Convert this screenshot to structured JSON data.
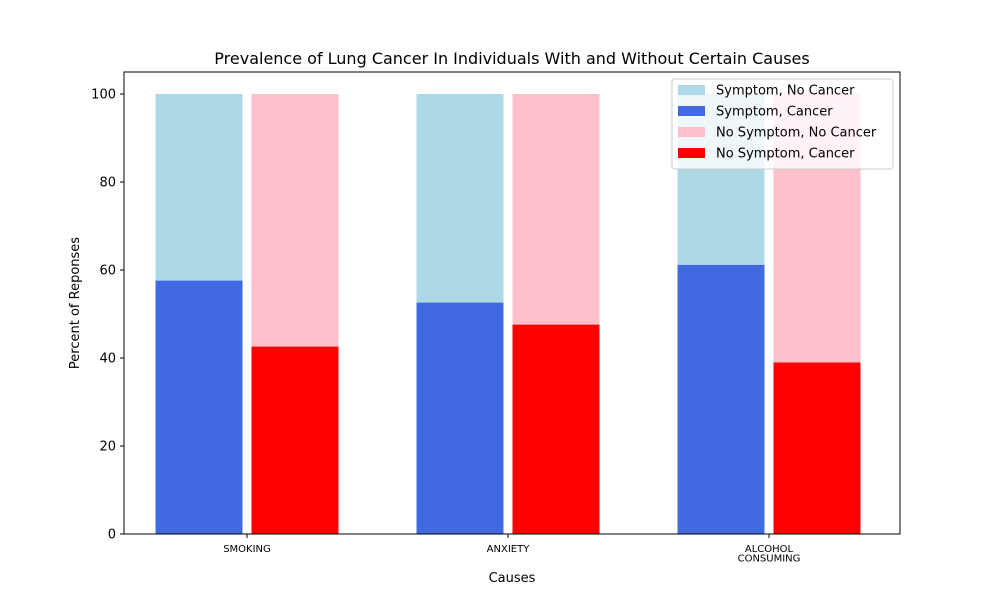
{
  "chart_data": {
    "type": "bar",
    "title": "Prevalence of Lung Cancer In Individuals With and Without Certain Causes",
    "xlabel": "Causes",
    "ylabel": "Percent of Reponses",
    "categories": [
      [
        "SMOKING"
      ],
      [
        "ANXIETY"
      ],
      [
        "ALCOHOL",
        "CONSUMING"
      ]
    ],
    "ylim": [
      0,
      105
    ],
    "yticks": [
      0,
      20,
      40,
      60,
      80,
      100
    ],
    "grid": false,
    "legend_position": "top-right",
    "stacks": [
      {
        "group": "Symptom",
        "series": [
          {
            "name": "Symptom, Cancer",
            "color": "#4169e1",
            "values": [
              57.6,
              52.6,
              61.2
            ]
          },
          {
            "name": "Symptom, No Cancer",
            "color": "#add8e6",
            "values": [
              42.4,
              47.4,
              38.8
            ]
          }
        ]
      },
      {
        "group": "No Symptom",
        "series": [
          {
            "name": "No Symptom, Cancer",
            "color": "#ff0000",
            "values": [
              42.6,
              47.6,
              39.0
            ]
          },
          {
            "name": "No Symptom, No Cancer",
            "color": "#ffc0cb",
            "values": [
              57.4,
              52.4,
              61.0
            ]
          }
        ]
      }
    ],
    "legend": [
      {
        "name": "Symptom, No Cancer",
        "color": "#add8e6"
      },
      {
        "name": "Symptom, Cancer",
        "color": "#4169e1"
      },
      {
        "name": "No Symptom, No Cancer",
        "color": "#ffc0cb"
      },
      {
        "name": "No Symptom, Cancer",
        "color": "#ff0000"
      }
    ]
  }
}
